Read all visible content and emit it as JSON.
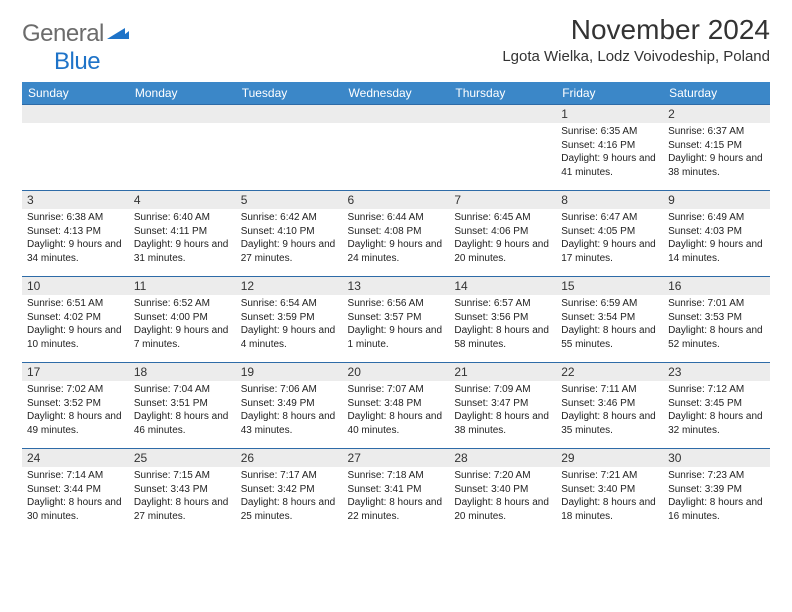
{
  "brand": {
    "part1": "General",
    "part2": "Blue"
  },
  "title": "November 2024",
  "location": "Lgota Wielka, Lodz Voivodeship, Poland",
  "colors": {
    "header_bg": "#3b87c8",
    "daynum_bg": "#ececec",
    "row_border": "#2e6ba7",
    "logo_gray": "#6c6c6c",
    "logo_blue": "#1e73c8"
  },
  "weekdays": [
    "Sunday",
    "Monday",
    "Tuesday",
    "Wednesday",
    "Thursday",
    "Friday",
    "Saturday"
  ],
  "weeks": [
    [
      null,
      null,
      null,
      null,
      null,
      {
        "n": "1",
        "sr": "6:35 AM",
        "ss": "4:16 PM",
        "dl": "9 hours and 41 minutes."
      },
      {
        "n": "2",
        "sr": "6:37 AM",
        "ss": "4:15 PM",
        "dl": "9 hours and 38 minutes."
      }
    ],
    [
      {
        "n": "3",
        "sr": "6:38 AM",
        "ss": "4:13 PM",
        "dl": "9 hours and 34 minutes."
      },
      {
        "n": "4",
        "sr": "6:40 AM",
        "ss": "4:11 PM",
        "dl": "9 hours and 31 minutes."
      },
      {
        "n": "5",
        "sr": "6:42 AM",
        "ss": "4:10 PM",
        "dl": "9 hours and 27 minutes."
      },
      {
        "n": "6",
        "sr": "6:44 AM",
        "ss": "4:08 PM",
        "dl": "9 hours and 24 minutes."
      },
      {
        "n": "7",
        "sr": "6:45 AM",
        "ss": "4:06 PM",
        "dl": "9 hours and 20 minutes."
      },
      {
        "n": "8",
        "sr": "6:47 AM",
        "ss": "4:05 PM",
        "dl": "9 hours and 17 minutes."
      },
      {
        "n": "9",
        "sr": "6:49 AM",
        "ss": "4:03 PM",
        "dl": "9 hours and 14 minutes."
      }
    ],
    [
      {
        "n": "10",
        "sr": "6:51 AM",
        "ss": "4:02 PM",
        "dl": "9 hours and 10 minutes."
      },
      {
        "n": "11",
        "sr": "6:52 AM",
        "ss": "4:00 PM",
        "dl": "9 hours and 7 minutes."
      },
      {
        "n": "12",
        "sr": "6:54 AM",
        "ss": "3:59 PM",
        "dl": "9 hours and 4 minutes."
      },
      {
        "n": "13",
        "sr": "6:56 AM",
        "ss": "3:57 PM",
        "dl": "9 hours and 1 minute."
      },
      {
        "n": "14",
        "sr": "6:57 AM",
        "ss": "3:56 PM",
        "dl": "8 hours and 58 minutes."
      },
      {
        "n": "15",
        "sr": "6:59 AM",
        "ss": "3:54 PM",
        "dl": "8 hours and 55 minutes."
      },
      {
        "n": "16",
        "sr": "7:01 AM",
        "ss": "3:53 PM",
        "dl": "8 hours and 52 minutes."
      }
    ],
    [
      {
        "n": "17",
        "sr": "7:02 AM",
        "ss": "3:52 PM",
        "dl": "8 hours and 49 minutes."
      },
      {
        "n": "18",
        "sr": "7:04 AM",
        "ss": "3:51 PM",
        "dl": "8 hours and 46 minutes."
      },
      {
        "n": "19",
        "sr": "7:06 AM",
        "ss": "3:49 PM",
        "dl": "8 hours and 43 minutes."
      },
      {
        "n": "20",
        "sr": "7:07 AM",
        "ss": "3:48 PM",
        "dl": "8 hours and 40 minutes."
      },
      {
        "n": "21",
        "sr": "7:09 AM",
        "ss": "3:47 PM",
        "dl": "8 hours and 38 minutes."
      },
      {
        "n": "22",
        "sr": "7:11 AM",
        "ss": "3:46 PM",
        "dl": "8 hours and 35 minutes."
      },
      {
        "n": "23",
        "sr": "7:12 AM",
        "ss": "3:45 PM",
        "dl": "8 hours and 32 minutes."
      }
    ],
    [
      {
        "n": "24",
        "sr": "7:14 AM",
        "ss": "3:44 PM",
        "dl": "8 hours and 30 minutes."
      },
      {
        "n": "25",
        "sr": "7:15 AM",
        "ss": "3:43 PM",
        "dl": "8 hours and 27 minutes."
      },
      {
        "n": "26",
        "sr": "7:17 AM",
        "ss": "3:42 PM",
        "dl": "8 hours and 25 minutes."
      },
      {
        "n": "27",
        "sr": "7:18 AM",
        "ss": "3:41 PM",
        "dl": "8 hours and 22 minutes."
      },
      {
        "n": "28",
        "sr": "7:20 AM",
        "ss": "3:40 PM",
        "dl": "8 hours and 20 minutes."
      },
      {
        "n": "29",
        "sr": "7:21 AM",
        "ss": "3:40 PM",
        "dl": "8 hours and 18 minutes."
      },
      {
        "n": "30",
        "sr": "7:23 AM",
        "ss": "3:39 PM",
        "dl": "8 hours and 16 minutes."
      }
    ]
  ],
  "labels": {
    "sunrise": "Sunrise:",
    "sunset": "Sunset:",
    "daylight": "Daylight:"
  }
}
